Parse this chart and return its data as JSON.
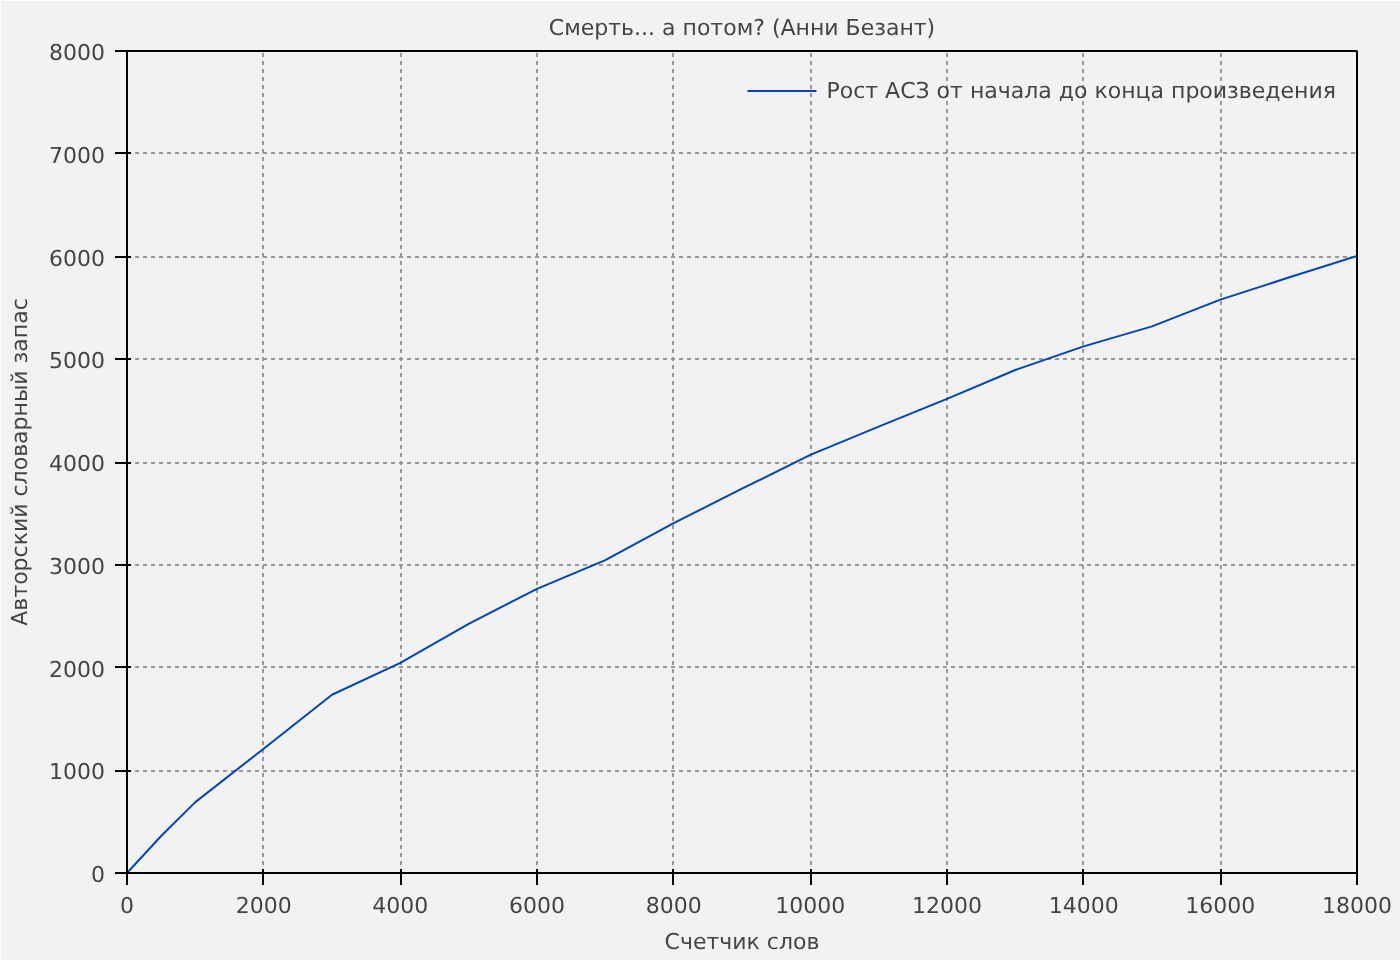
{
  "chart_data": {
    "type": "line",
    "title": "Смерть... а потом? (Анни Безант)",
    "xlabel": "Счетчик слов",
    "ylabel": "Авторский словарный запас",
    "x": [
      0,
      500,
      1000,
      2000,
      3000,
      4000,
      5000,
      6000,
      7000,
      8000,
      9000,
      10000,
      11000,
      12000,
      13000,
      14000,
      15000,
      16000,
      17000,
      18000
    ],
    "series": [
      {
        "name": "Рост АСЗ от начала до конца произведения",
        "color": "#0044bb",
        "values": [
          0,
          360,
          690,
          1210,
          1735,
          2045,
          2425,
          2765,
          3045,
          3405,
          3740,
          4070,
          4345,
          4615,
          4895,
          5125,
          5320,
          5580,
          5795,
          6005
        ]
      }
    ],
    "xlim": [
      0,
      18000
    ],
    "ylim": [
      0,
      8000
    ],
    "xticks": [
      0,
      2000,
      4000,
      6000,
      8000,
      10000,
      12000,
      14000,
      16000,
      18000
    ],
    "yticks": [
      0,
      1000,
      2000,
      3000,
      4000,
      5000,
      6000,
      7000,
      8000
    ],
    "grid": true,
    "legend": "top right",
    "line_style": "solid",
    "marker": "none"
  }
}
